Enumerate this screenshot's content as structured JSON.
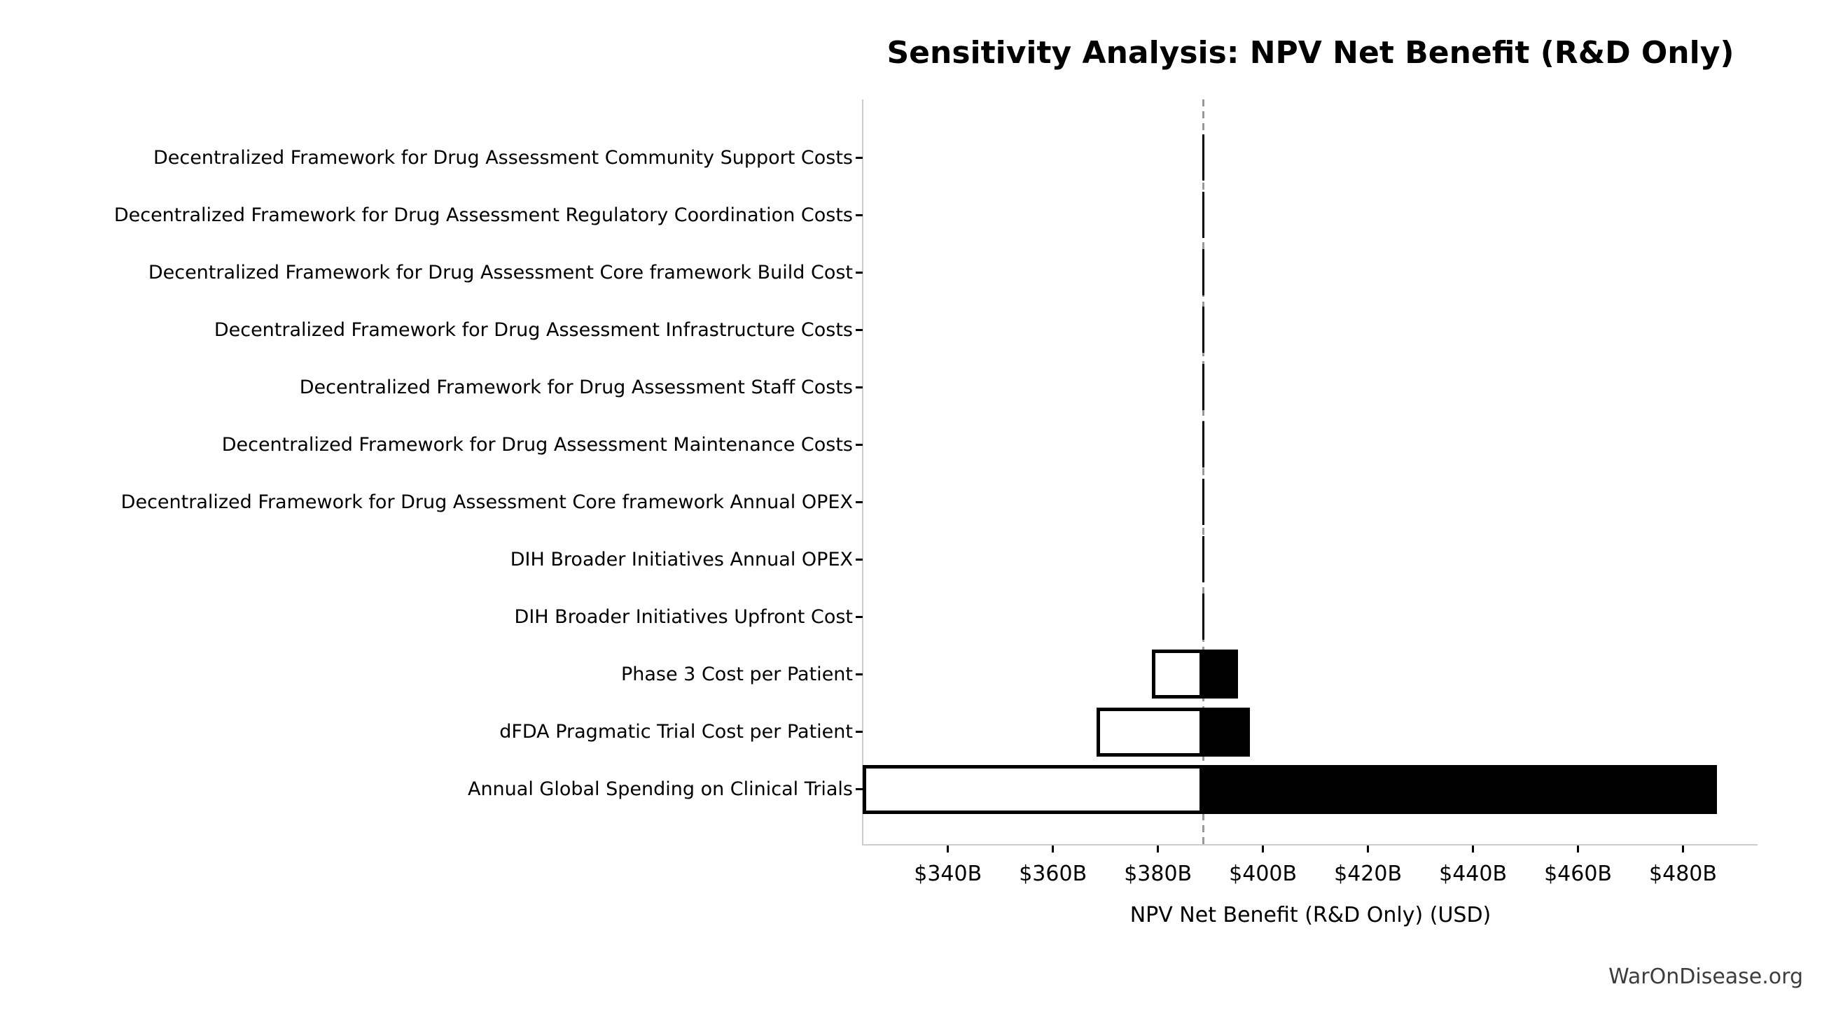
{
  "title": "Sensitivity Analysis: NPV Net Benefit (R&D Only)",
  "watermark": "WarOnDisease.org",
  "colors": {
    "bar_fill_high": "#000000",
    "bar_fill_low": "#ffffff",
    "bar_edge": "#000000",
    "baseline_dashed": "#999999",
    "spine": "#cccccc",
    "text": "#000000",
    "watermark_text": "#3d3d3d",
    "background": "#ffffff"
  },
  "chart_data": {
    "type": "bar",
    "subtype": "tornado-sensitivity",
    "orientation": "horizontal",
    "title": "Sensitivity Analysis: NPV Net Benefit (R&D Only)",
    "xlabel": "NPV Net Benefit (R&D Only) (USD)",
    "ylabel": "",
    "unit": "billion USD",
    "xlim": [
      323.9,
      494.2
    ],
    "base_value": 388.6,
    "grid": false,
    "legend": null,
    "x_ticks": [
      {
        "value": 340,
        "label": "$340B"
      },
      {
        "value": 360,
        "label": "$360B"
      },
      {
        "value": 380,
        "label": "$380B"
      },
      {
        "value": 400,
        "label": "$400B"
      },
      {
        "value": 420,
        "label": "$420B"
      },
      {
        "value": 440,
        "label": "$440B"
      },
      {
        "value": 460,
        "label": "$460B"
      },
      {
        "value": 480,
        "label": "$480B"
      }
    ],
    "rows": [
      {
        "label": "Decentralized Framework for Drug Assessment Community Support Costs",
        "low": 388.6,
        "high": 388.6
      },
      {
        "label": "Decentralized Framework for Drug Assessment Regulatory Coordination Costs",
        "low": 388.6,
        "high": 388.6
      },
      {
        "label": "Decentralized Framework for Drug Assessment Core framework Build Cost",
        "low": 388.6,
        "high": 388.6
      },
      {
        "label": "Decentralized Framework for Drug Assessment Infrastructure Costs",
        "low": 388.6,
        "high": 388.6
      },
      {
        "label": "Decentralized Framework for Drug Assessment Staff Costs",
        "low": 388.6,
        "high": 388.6
      },
      {
        "label": "Decentralized Framework for Drug Assessment Maintenance Costs",
        "low": 388.6,
        "high": 388.6
      },
      {
        "label": "Decentralized Framework for Drug Assessment Core framework Annual OPEX",
        "low": 388.6,
        "high": 388.6
      },
      {
        "label": "DIH Broader Initiatives Annual OPEX",
        "low": 388.6,
        "high": 388.6
      },
      {
        "label": "DIH Broader Initiatives Upfront Cost",
        "low": 388.6,
        "high": 388.6
      },
      {
        "label": "Phase 3 Cost per Patient",
        "low": 379.2,
        "high": 394.9
      },
      {
        "label": "dFDA Pragmatic Trial Cost per Patient",
        "low": 368.7,
        "high": 397.2
      },
      {
        "label": "Annual Global Spending on Clinical Trials",
        "low": 324.1,
        "high": 486.2
      }
    ]
  }
}
